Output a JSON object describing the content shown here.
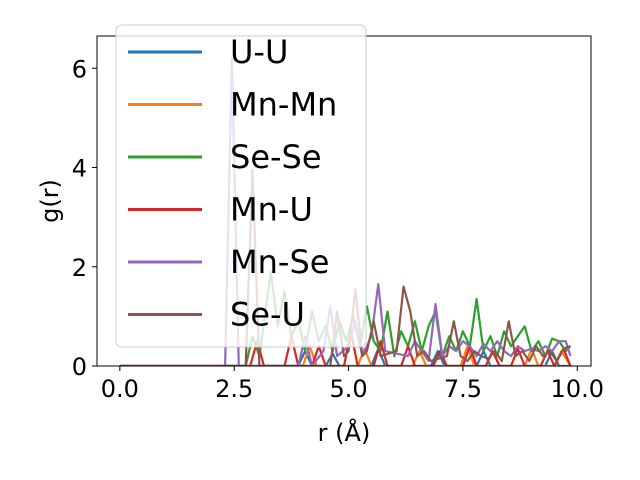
{
  "chart_data": {
    "type": "line",
    "xlabel": "r (Å)",
    "ylabel": "g(r)",
    "xlim": [
      -0.5,
      10.3
    ],
    "ylim": [
      0,
      6.65
    ],
    "xticks": [
      0.0,
      2.5,
      5.0,
      7.5,
      10.0
    ],
    "xtick_labels": [
      "0.0",
      "2.5",
      "5.0",
      "7.5",
      "10.0"
    ],
    "yticks": [
      0,
      2,
      4,
      6
    ],
    "ytick_labels": [
      "0",
      "2",
      "4",
      "6"
    ],
    "grid": false,
    "legend_position": "upper-left",
    "series": [
      {
        "name": "U-U",
        "color": "#1f77b4",
        "x": [
          0,
          3.9,
          4.05,
          4.2,
          4.5,
          4.65,
          4.8,
          5.5,
          5.65,
          5.8,
          6.8,
          6.95,
          7.1,
          7.8,
          7.95,
          8.1,
          9.3,
          9.45,
          9.6,
          9.85
        ],
        "y": [
          0,
          0,
          0.3,
          0,
          0,
          0.25,
          0,
          0,
          0.35,
          0,
          0,
          0.3,
          0,
          0,
          0.3,
          0,
          0,
          0.3,
          0,
          0
        ]
      },
      {
        "name": "Mn-Mn",
        "color": "#ff7f0e",
        "x": [
          0,
          4.0,
          4.15,
          4.3,
          5.2,
          5.35,
          5.5,
          6.4,
          6.55,
          6.7,
          7.45,
          7.6,
          7.75,
          8.0,
          8.15,
          8.3,
          8.85,
          9.0,
          9.15,
          9.5,
          9.65,
          9.85
        ],
        "y": [
          0,
          0,
          0.4,
          0,
          0,
          0.35,
          0,
          0,
          0.3,
          0,
          0,
          0.4,
          0,
          0,
          0.3,
          0,
          0,
          0.35,
          0,
          0,
          0.3,
          0
        ]
      },
      {
        "name": "Se-Se",
        "color": "#2ca02c",
        "x": [
          0,
          2.75,
          2.9,
          3.05,
          3.3,
          3.45,
          3.6,
          3.75,
          3.9,
          4.05,
          4.2,
          4.35,
          4.5,
          4.65,
          4.8,
          4.95,
          5.1,
          5.25,
          5.4,
          5.55,
          5.7,
          5.85,
          6.0,
          6.15,
          6.3,
          6.45,
          6.6,
          6.75,
          6.9,
          7.05,
          7.2,
          7.35,
          7.5,
          7.65,
          7.8,
          7.95,
          8.1,
          8.25,
          8.4,
          8.55,
          8.7,
          8.85,
          9.0,
          9.15,
          9.3,
          9.45,
          9.6,
          9.75,
          9.85
        ],
        "y": [
          0,
          0,
          0.6,
          0.2,
          1.9,
          0.8,
          1.5,
          0.6,
          0.9,
          0.3,
          1.1,
          0.5,
          0.8,
          0.3,
          0.9,
          0.5,
          1.0,
          0.4,
          1.2,
          0.5,
          0.3,
          1.1,
          0.2,
          0.7,
          0.4,
          0.9,
          0.3,
          0.8,
          1.1,
          0.2,
          0.6,
          0.3,
          0.7,
          0.4,
          1.35,
          0.3,
          0.6,
          0.2,
          0.7,
          0.4,
          0.6,
          0.8,
          0.3,
          0.5,
          0.2,
          0.55,
          0.5,
          0.3,
          0.4
        ]
      },
      {
        "name": "Mn-U",
        "color": "#d62728",
        "x": [
          0,
          2.85,
          3.0,
          3.15,
          3.6,
          3.75,
          3.9,
          4.2,
          4.35,
          4.5,
          4.9,
          5.05,
          5.2,
          5.55,
          5.7,
          5.85,
          6.15,
          6.3,
          6.45,
          6.85,
          7.0,
          7.15,
          7.5,
          7.65,
          7.8,
          8.0,
          8.15,
          8.3,
          8.55,
          8.7,
          8.85,
          9.2,
          9.35,
          9.5,
          9.7,
          9.85
        ],
        "y": [
          0,
          0,
          0.5,
          0,
          0,
          0.6,
          0,
          0,
          0.4,
          0,
          0,
          0.7,
          0,
          0,
          0.5,
          0,
          0,
          0.4,
          0,
          0,
          0.3,
          0,
          0,
          0.4,
          0,
          0,
          0.3,
          0,
          0,
          0.35,
          0,
          0,
          0.3,
          0,
          0.35,
          0
        ]
      },
      {
        "name": "Mn-Se",
        "color": "#9467bd",
        "x": [
          0,
          2.3,
          2.45,
          2.6,
          3.9,
          4.05,
          4.2,
          4.45,
          4.6,
          4.75,
          5.0,
          5.15,
          5.3,
          5.5,
          5.65,
          5.8,
          6.3,
          6.45,
          6.6,
          6.75,
          6.9,
          7.05,
          7.2,
          7.35,
          7.5,
          7.65,
          7.8,
          7.95,
          8.1,
          8.25,
          8.4,
          8.55,
          8.7,
          8.85,
          9.0,
          9.15,
          9.3,
          9.45,
          9.6,
          9.75,
          9.85
        ],
        "y": [
          0,
          0,
          6.2,
          0,
          0,
          0.6,
          0,
          0.3,
          1.2,
          0.2,
          0.4,
          0.9,
          0.2,
          0.6,
          1.65,
          0.3,
          0.2,
          0.5,
          0.3,
          0.1,
          1.25,
          0.2,
          0.4,
          0.3,
          0.5,
          0.4,
          0.2,
          0.45,
          0.3,
          0.5,
          0.3,
          0.2,
          0.4,
          0.3,
          0.35,
          0.3,
          0.4,
          0.3,
          0.5,
          0.5,
          0.2
        ]
      },
      {
        "name": "Se-U",
        "color": "#8c564b",
        "x": [
          0,
          2.75,
          2.9,
          3.05,
          4.6,
          4.75,
          4.9,
          5.0,
          5.15,
          5.3,
          5.4,
          5.55,
          5.7,
          6.05,
          6.2,
          6.35,
          6.5,
          6.65,
          6.8,
          7.15,
          7.3,
          7.45,
          7.6,
          7.75,
          7.9,
          8.05,
          8.2,
          8.35,
          8.5,
          8.65,
          8.8,
          8.95,
          9.1,
          9.25,
          9.4,
          9.55,
          9.7,
          9.85
        ],
        "y": [
          0,
          0,
          3.95,
          0,
          0,
          1.1,
          0.2,
          0.3,
          1.55,
          0.2,
          0.3,
          0.9,
          0.2,
          0.3,
          1.6,
          1.1,
          0.2,
          0.3,
          0.1,
          0.2,
          0.9,
          0.2,
          0.1,
          0.3,
          0.2,
          0.15,
          0.3,
          0.1,
          0.9,
          0.2,
          0.3,
          0.1,
          0.4,
          0.2,
          0.3,
          0.1,
          0.35,
          0.4
        ]
      }
    ]
  }
}
